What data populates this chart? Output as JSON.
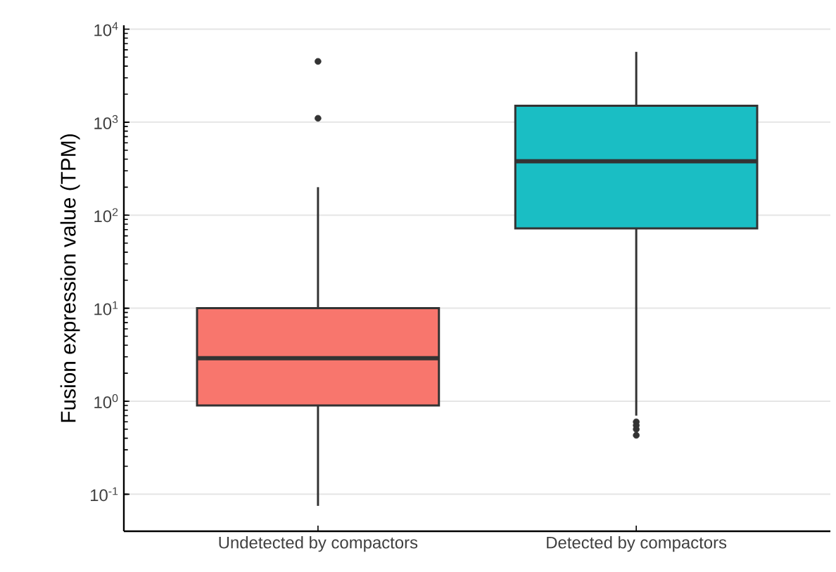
{
  "chart_data": {
    "type": "box",
    "ylabel": "Fusion expression value (TPM)",
    "categories": [
      "Undetected by compactors",
      "Detected by compactors"
    ],
    "colors": [
      "#f8766d",
      "#1abec4"
    ],
    "boxes": [
      {
        "low": 0.075,
        "q1": 0.9,
        "median": 2.9,
        "q3": 10,
        "high": 200,
        "outliers": [
          1100,
          4500
        ]
      },
      {
        "low": 0.7,
        "q1": 72,
        "median": 380,
        "q3": 1500,
        "high": 5700,
        "outliers": [
          0.6,
          0.55,
          0.5,
          0.43
        ]
      }
    ],
    "ylim": [
      0.04,
      11000
    ],
    "yticks": [
      {
        "value": 0.1,
        "label": "10$^{-1}$"
      },
      {
        "value": 1,
        "label": "10$^{0}$"
      },
      {
        "value": 10,
        "label": "10$^{1}$"
      },
      {
        "value": 100,
        "label": "10$^{2}$"
      },
      {
        "value": 1000,
        "label": "10$^{3}$"
      },
      {
        "value": 10000,
        "label": "10$^{4}$"
      }
    ],
    "log": "y",
    "grid": "y"
  }
}
